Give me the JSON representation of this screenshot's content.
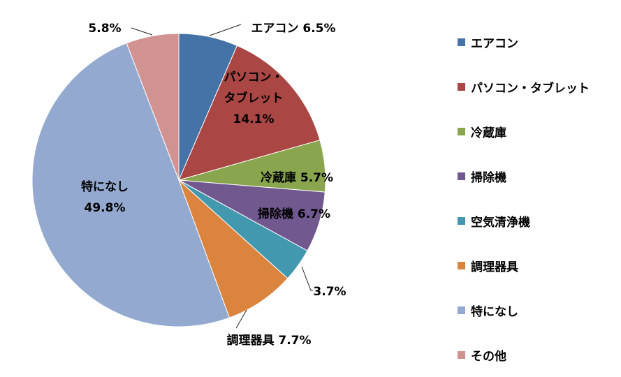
{
  "chart_data": {
    "type": "pie",
    "title": "",
    "legend_position": "right",
    "slices": [
      {
        "name": "エアコン",
        "value": 6.5,
        "color": "#4572A7",
        "label_lines": [
          "エアコン 6.5%"
        ]
      },
      {
        "name": "パソコン・タブレット",
        "value": 14.1,
        "color": "#AA4643",
        "label_lines": [
          "パソコン・",
          "タブレット",
          "14.1%"
        ]
      },
      {
        "name": "冷蔵庫",
        "value": 5.7,
        "color": "#89A54E",
        "label_lines": [
          "冷蔵庫 5.7%"
        ]
      },
      {
        "name": "掃除機",
        "value": 6.7,
        "color": "#71588F",
        "label_lines": [
          "掃除機 6.7%"
        ]
      },
      {
        "name": "空気清浄機",
        "value": 3.7,
        "color": "#4198AF",
        "label_lines": [
          "3.7%"
        ]
      },
      {
        "name": "調理器具",
        "value": 7.7,
        "color": "#DB843D",
        "label_lines": [
          "調理器具 7.7%"
        ]
      },
      {
        "name": "特になし",
        "value": 49.8,
        "color": "#93A9CF",
        "label_lines": [
          "特になし",
          "49.8%"
        ]
      },
      {
        "name": "その他",
        "value": 5.8,
        "color": "#D19392",
        "label_lines": [
          "5.8%"
        ]
      }
    ]
  }
}
